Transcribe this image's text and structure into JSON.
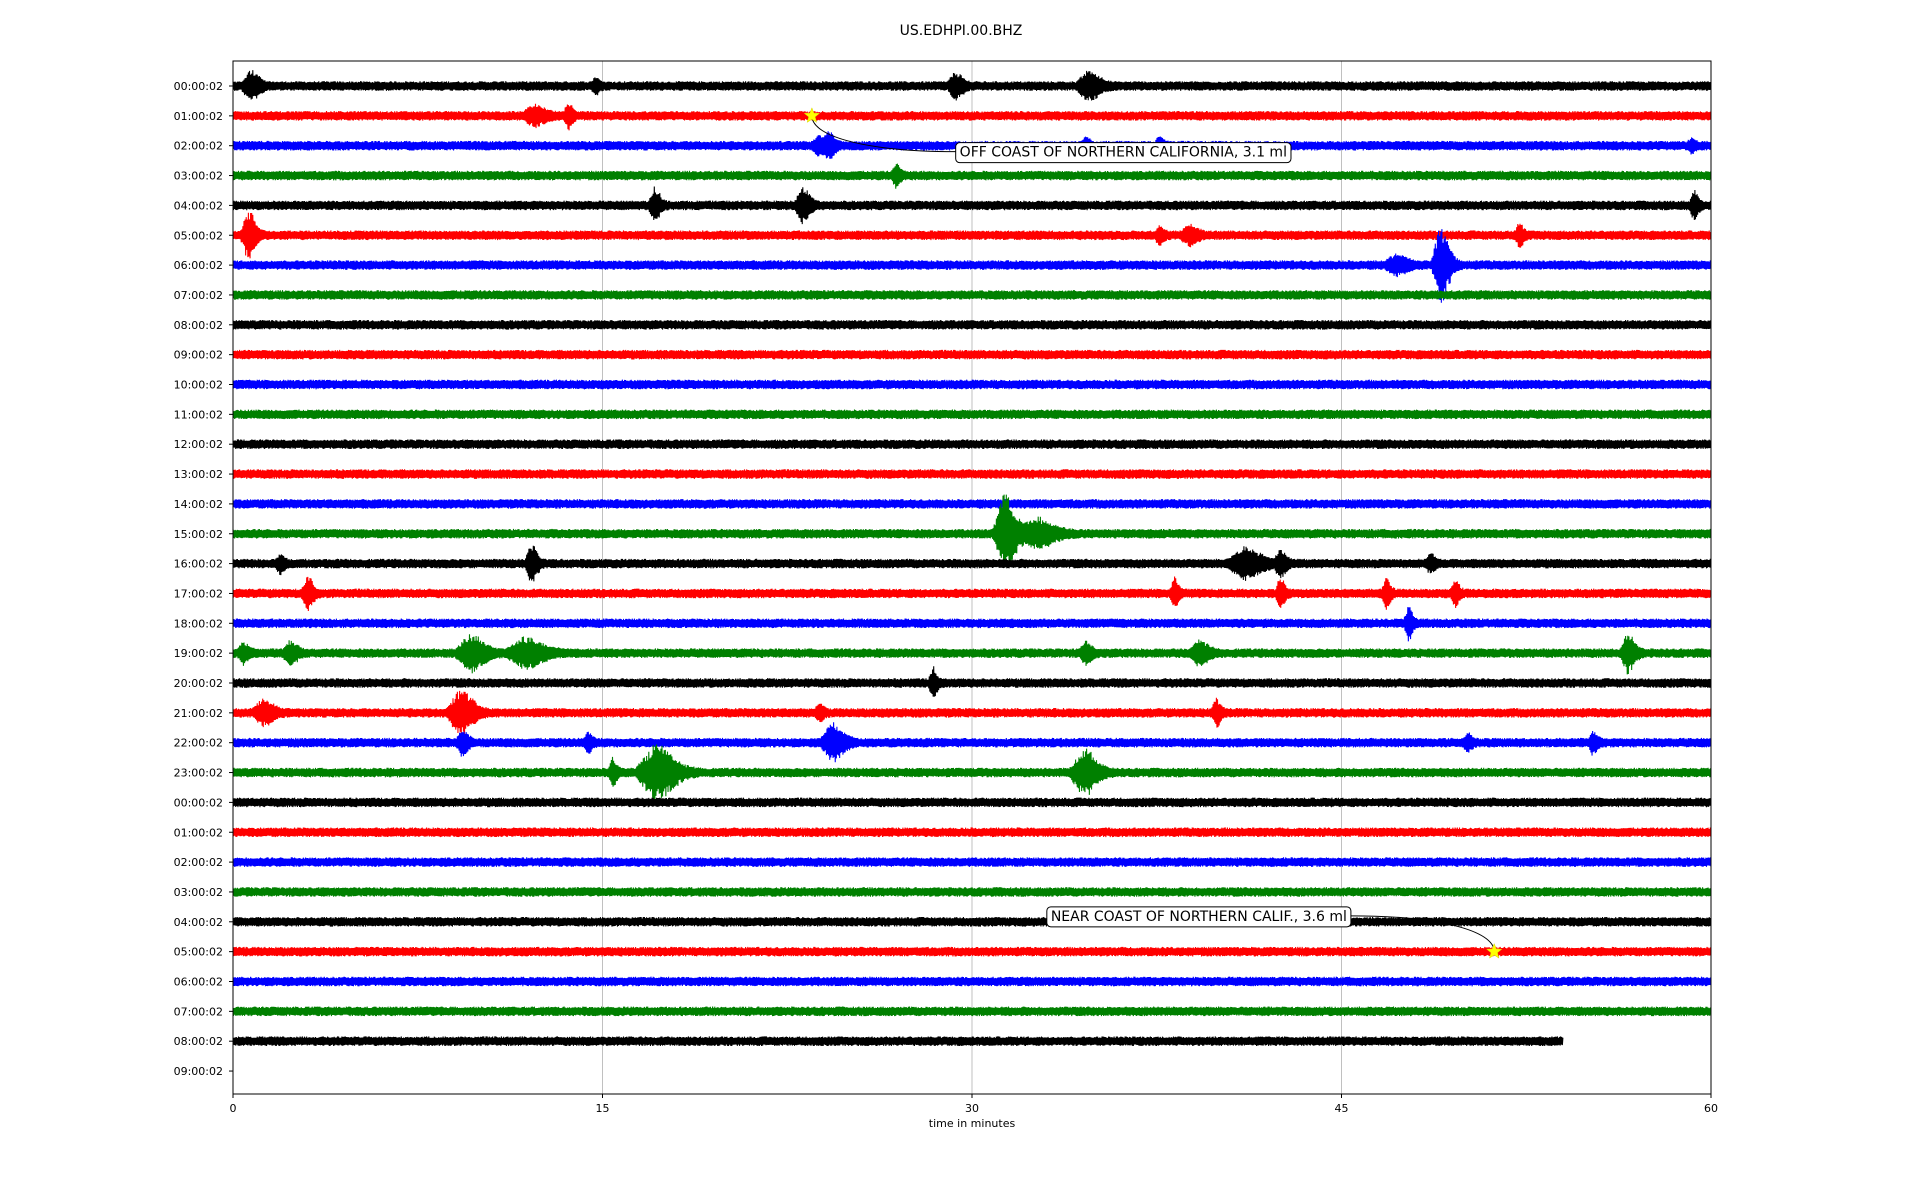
{
  "chart_data": {
    "type": "line",
    "title": "US.EDHPI.00.BHZ",
    "xlabel": "time in minutes",
    "ylabel": "",
    "xlim": [
      0,
      60
    ],
    "x_ticks": [
      0,
      15,
      30,
      45,
      60
    ],
    "grid_x": true,
    "colors": [
      "#000000",
      "#ff0000",
      "#0000ff",
      "#008000"
    ],
    "row_labels": [
      "00:00:02",
      "01:00:02",
      "02:00:02",
      "03:00:02",
      "04:00:02",
      "05:00:02",
      "06:00:02",
      "07:00:02",
      "08:00:02",
      "09:00:02",
      "10:00:02",
      "11:00:02",
      "12:00:02",
      "13:00:02",
      "14:00:02",
      "15:00:02",
      "16:00:02",
      "17:00:02",
      "18:00:02",
      "19:00:02",
      "20:00:02",
      "21:00:02",
      "22:00:02",
      "23:00:02",
      "00:00:02",
      "01:00:02",
      "02:00:02",
      "03:00:02",
      "04:00:02",
      "05:00:02",
      "06:00:02",
      "07:00:02",
      "08:00:02",
      "09:00:02"
    ],
    "trace_end_minutes": [
      60,
      60,
      60,
      60,
      60,
      60,
      60,
      60,
      60,
      60,
      60,
      60,
      60,
      60,
      60,
      60,
      60,
      60,
      60,
      60,
      60,
      60,
      60,
      60,
      60,
      60,
      60,
      60,
      60,
      60,
      60,
      60,
      54,
      0
    ],
    "events": [
      {
        "row": 0,
        "bursts": [
          [
            0.7,
            0.6,
            0.8
          ],
          [
            14.7,
            0.3,
            0.4
          ],
          [
            29.3,
            0.5,
            0.7
          ],
          [
            34.7,
            0.8,
            0.8
          ]
        ]
      },
      {
        "row": 1,
        "bursts": [
          [
            12.2,
            0.8,
            0.5
          ],
          [
            13.6,
            0.3,
            0.7
          ]
        ]
      },
      {
        "row": 2,
        "bursts": [
          [
            23.8,
            0.6,
            0.5
          ],
          [
            24.2,
            0.4,
            0.6
          ],
          [
            34.6,
            0.3,
            0.4
          ],
          [
            37.6,
            0.3,
            0.5
          ],
          [
            59.2,
            0.3,
            0.3
          ]
        ]
      },
      {
        "row": 3,
        "bursts": [
          [
            26.9,
            0.3,
            0.6
          ]
        ]
      },
      {
        "row": 4,
        "bursts": [
          [
            17.1,
            0.4,
            0.9
          ],
          [
            23.1,
            0.5,
            1.0
          ],
          [
            59.3,
            0.3,
            0.8
          ]
        ]
      },
      {
        "row": 5,
        "bursts": [
          [
            0.6,
            0.5,
            1.4
          ],
          [
            37.6,
            0.3,
            0.5
          ],
          [
            38.8,
            0.6,
            0.5
          ],
          [
            52.2,
            0.3,
            0.6
          ]
        ]
      },
      {
        "row": 6,
        "bursts": [
          [
            47.2,
            0.8,
            0.5
          ],
          [
            49.0,
            0.6,
            2.2
          ]
        ]
      },
      {
        "row": 15,
        "bursts": [
          [
            31.3,
            0.8,
            2.3
          ],
          [
            32.6,
            1.2,
            0.8
          ]
        ]
      },
      {
        "row": 16,
        "bursts": [
          [
            1.9,
            0.3,
            0.5
          ],
          [
            12.1,
            0.4,
            1.1
          ],
          [
            41.0,
            1.2,
            0.8
          ],
          [
            42.5,
            0.4,
            0.8
          ],
          [
            48.6,
            0.3,
            0.5
          ]
        ]
      },
      {
        "row": 17,
        "bursts": [
          [
            3.0,
            0.4,
            0.9
          ],
          [
            38.2,
            0.3,
            0.8
          ],
          [
            42.5,
            0.3,
            0.9
          ],
          [
            46.8,
            0.3,
            0.8
          ],
          [
            49.6,
            0.3,
            0.7
          ]
        ]
      },
      {
        "row": 18,
        "bursts": [
          [
            47.7,
            0.3,
            0.9
          ]
        ]
      },
      {
        "row": 19,
        "bursts": [
          [
            0.4,
            0.4,
            0.5
          ],
          [
            2.3,
            0.5,
            0.6
          ],
          [
            9.6,
            1.0,
            1.0
          ],
          [
            11.8,
            1.3,
            0.8
          ],
          [
            34.6,
            0.4,
            0.6
          ],
          [
            39.2,
            0.6,
            0.7
          ],
          [
            56.6,
            0.5,
            1.1
          ]
        ]
      },
      {
        "row": 20,
        "bursts": [
          [
            28.4,
            0.3,
            0.8
          ]
        ]
      },
      {
        "row": 21,
        "bursts": [
          [
            1.2,
            0.7,
            0.7
          ],
          [
            9.2,
            0.9,
            1.3
          ],
          [
            23.8,
            0.3,
            0.4
          ],
          [
            39.9,
            0.3,
            0.8
          ]
        ]
      },
      {
        "row": 22,
        "bursts": [
          [
            9.3,
            0.4,
            0.7
          ],
          [
            14.4,
            0.3,
            0.5
          ],
          [
            24.3,
            0.8,
            1.0
          ],
          [
            50.1,
            0.3,
            0.5
          ],
          [
            55.2,
            0.3,
            0.6
          ]
        ]
      },
      {
        "row": 23,
        "bursts": [
          [
            15.4,
            0.3,
            0.7
          ],
          [
            17.1,
            1.3,
            1.6
          ],
          [
            34.5,
            0.9,
            1.3
          ]
        ]
      }
    ],
    "annotations": [
      {
        "text": "OFF COAST OF NORTHERN CALIFORNIA, 3.1 ml",
        "row": 1,
        "x": 23.5,
        "label_x": 29.5,
        "label_row": 2.2,
        "marker": "star",
        "marker_color": "#ffff00"
      },
      {
        "text": "NEAR COAST OF NORTHERN CALIF., 3.6 ml",
        "row": 29,
        "x": 51.2,
        "label_x": 33.2,
        "label_row": 27.8,
        "marker": "star",
        "marker_color": "#ffff00"
      }
    ]
  }
}
